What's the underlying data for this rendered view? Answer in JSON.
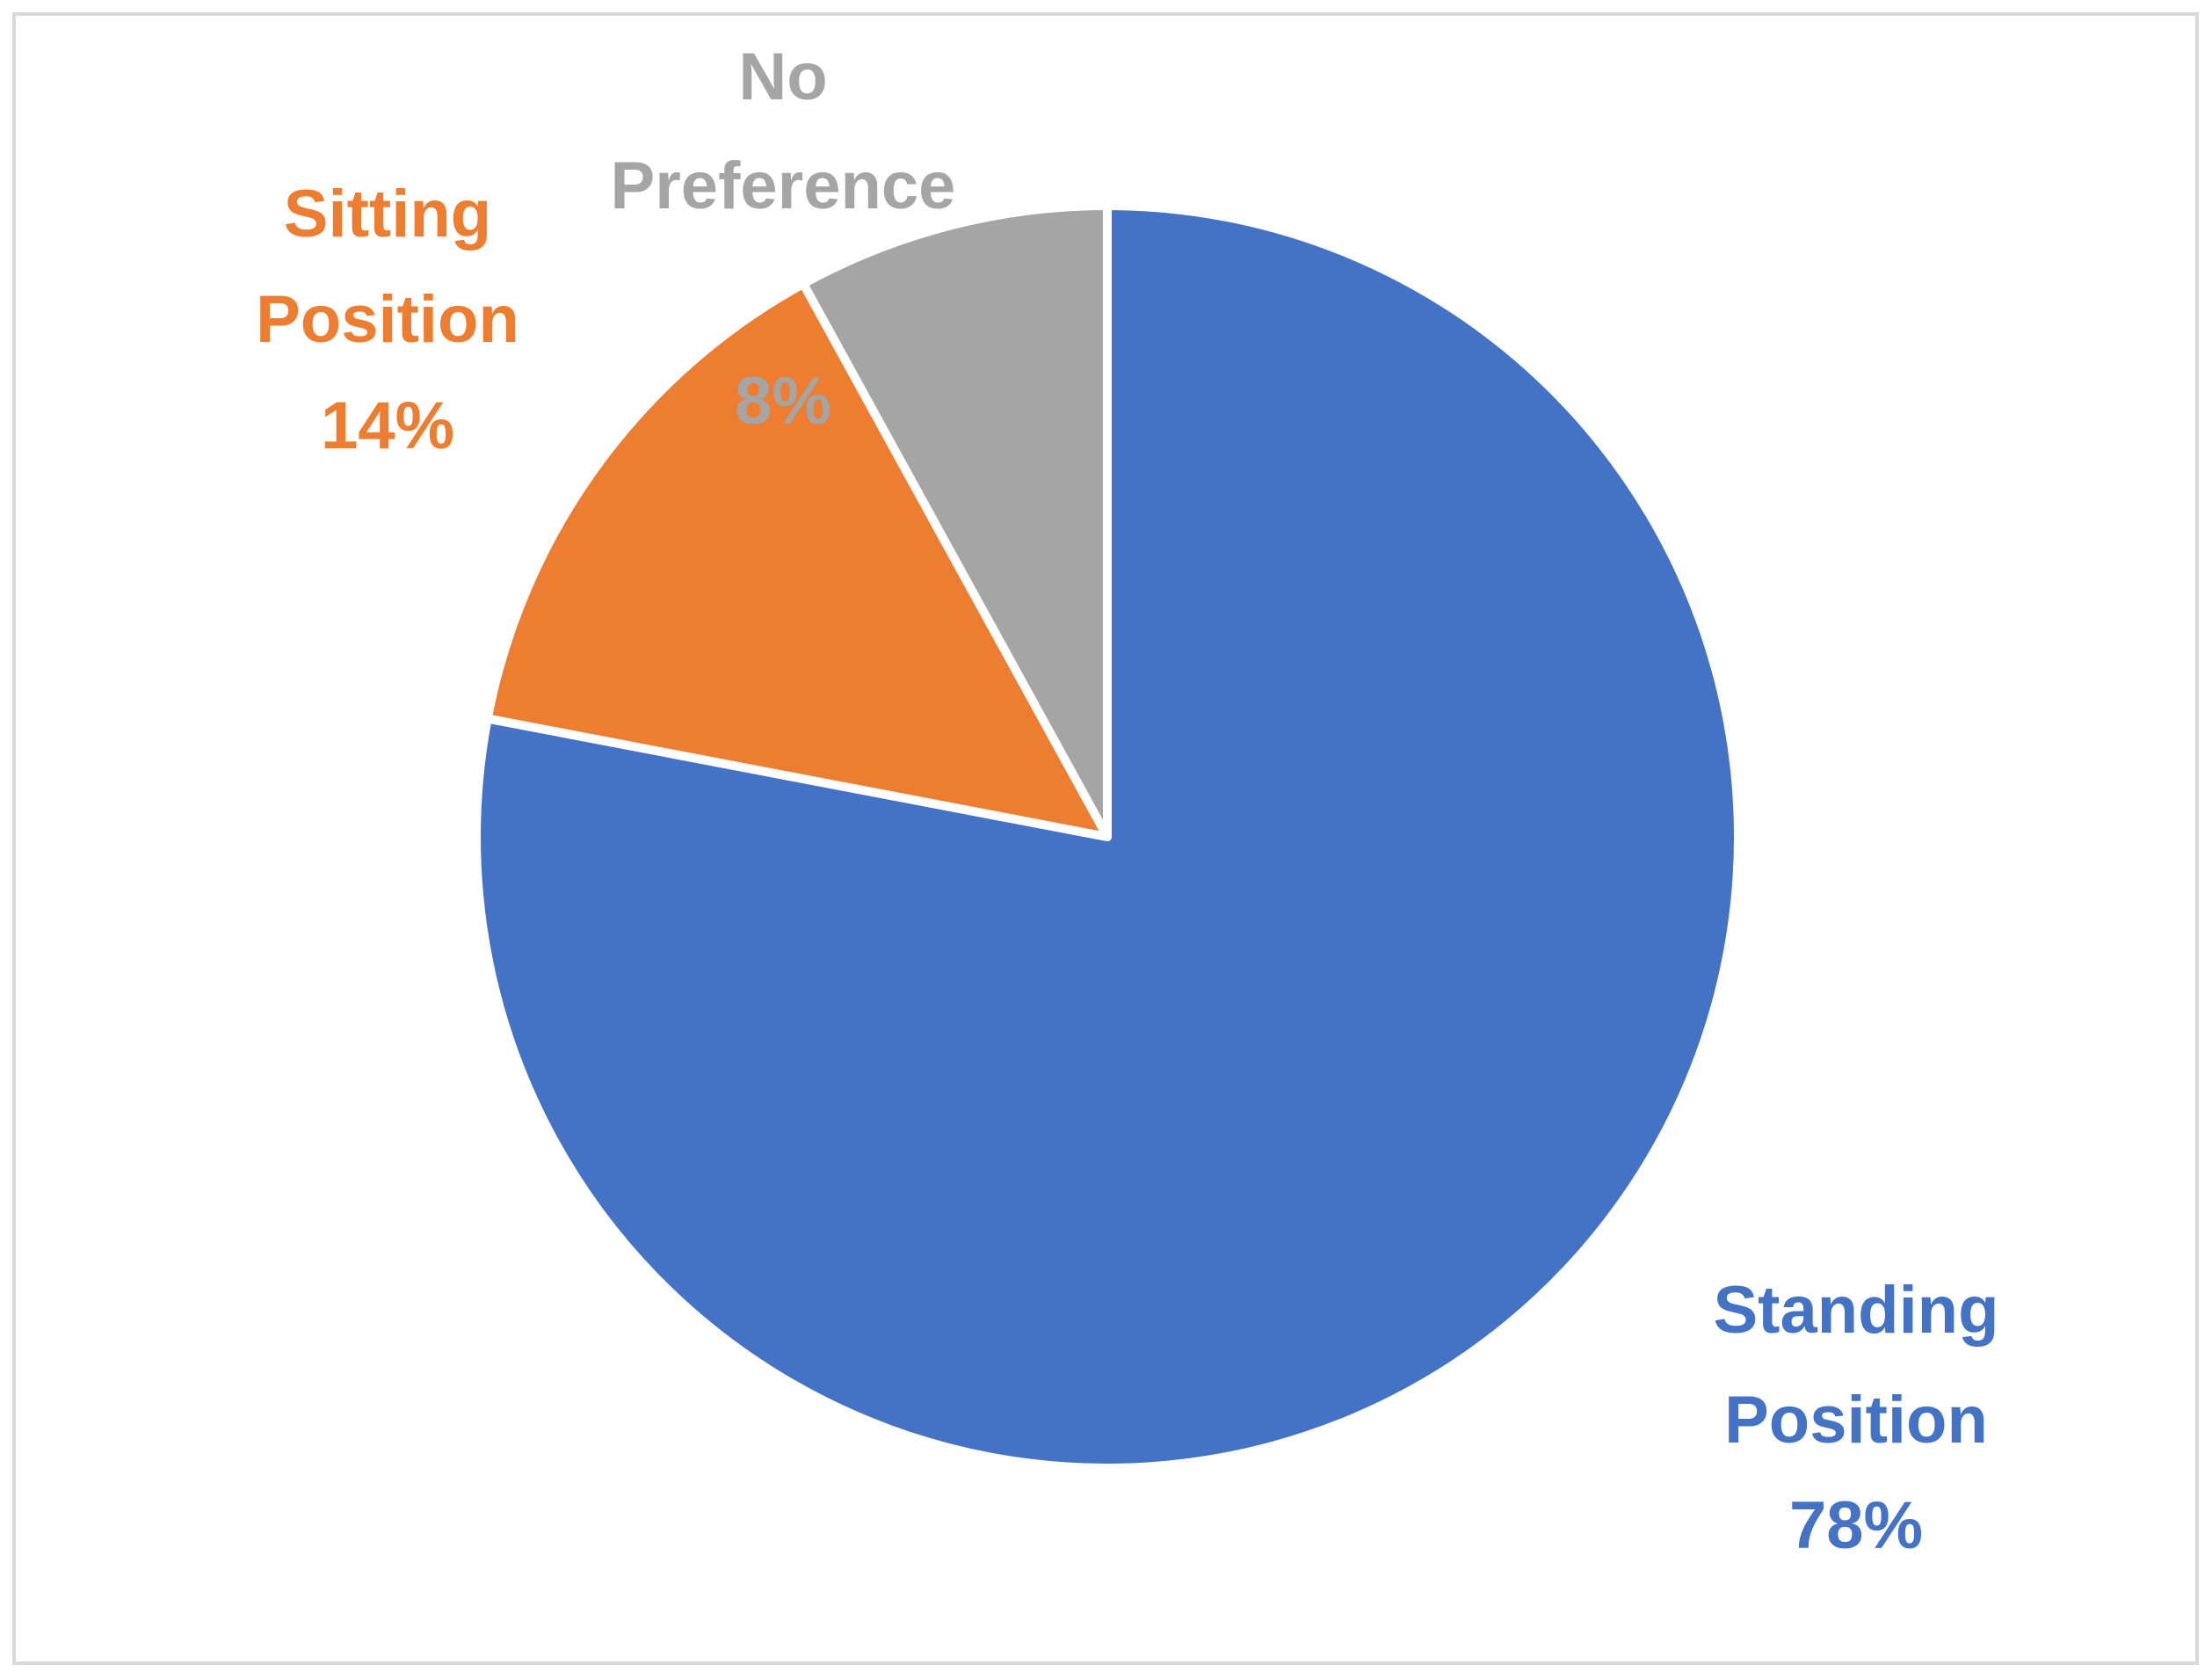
{
  "chart_data": {
    "type": "pie",
    "categories": [
      "Standing Position",
      "Sitting Position",
      "No Preference"
    ],
    "values": [
      78,
      14,
      8
    ],
    "value_labels": [
      "78%",
      "14%",
      "8%"
    ],
    "colors": [
      "#4472c4",
      "#ed7d31",
      "#a5a5a5"
    ]
  }
}
